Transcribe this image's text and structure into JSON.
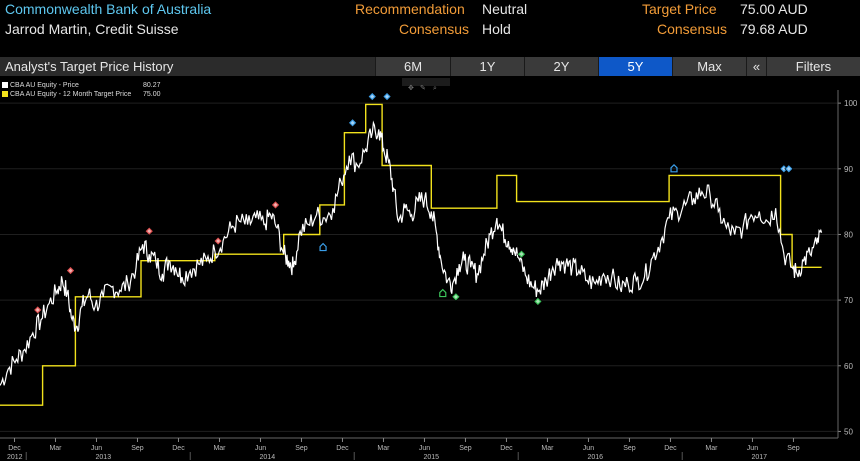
{
  "header": {
    "company": "Commonwealth Bank of Australia",
    "analyst": "Jarrod Martin, Credit Suisse",
    "recommendation_label": "Recommendation",
    "recommendation_value": "Neutral",
    "consensus_rating_label": "Consensus",
    "consensus_rating_value": "Hold",
    "target_price_label": "Target Price",
    "target_price_value": "75.00 AUD",
    "consensus_price_label": "Consensus",
    "consensus_price_value": "79.68 AUD"
  },
  "toolbar": {
    "title": "Analyst's Target Price History",
    "buttons": [
      "6M",
      "1Y",
      "2Y",
      "5Y",
      "Max",
      "«",
      "Filters"
    ],
    "active": "5Y"
  },
  "colors": {
    "price": "#ffffff",
    "target": "#f2e21c",
    "header_label": "#f29c38",
    "company": "#5ec8f0",
    "active_button": "#0e58c8"
  },
  "chart_data": {
    "type": "line",
    "legend": [
      {
        "name": "CBA AU Equity - Price",
        "value": "80.27",
        "color": "#ffffff"
      },
      {
        "name": "CBA AU Equity - 12 Month Target Price",
        "value": "75.00",
        "color": "#f2e21c"
      }
    ],
    "x_tick_months": [
      "Dec",
      "Mar",
      "Jun",
      "Sep",
      "Dec",
      "Mar",
      "Jun",
      "Sep",
      "Dec",
      "Mar",
      "Jun",
      "Sep",
      "Dec",
      "Mar",
      "Jun",
      "Sep",
      "Dec",
      "Mar",
      "Jun",
      "Sep"
    ],
    "x_tick_years": [
      "2012",
      "2013",
      "2014",
      "2015",
      "2016",
      "2017"
    ],
    "y_ticks": [
      50,
      60,
      70,
      80,
      90,
      100
    ],
    "ylim": [
      49,
      102
    ],
    "xlim": [
      2012.87,
      2017.98
    ],
    "price": [
      [
        2012.87,
        57
      ],
      [
        2012.92,
        59.5
      ],
      [
        2012.97,
        61
      ],
      [
        2013.02,
        62.5
      ],
      [
        2013.07,
        65
      ],
      [
        2013.12,
        67
      ],
      [
        2013.17,
        69.5
      ],
      [
        2013.22,
        71.5
      ],
      [
        2013.25,
        73
      ],
      [
        2013.28,
        71
      ],
      [
        2013.31,
        67
      ],
      [
        2013.34,
        66
      ],
      [
        2013.37,
        69
      ],
      [
        2013.41,
        71
      ],
      [
        2013.45,
        69
      ],
      [
        2013.5,
        70.5
      ],
      [
        2013.55,
        72
      ],
      [
        2013.6,
        71.5
      ],
      [
        2013.65,
        72.5
      ],
      [
        2013.7,
        75
      ],
      [
        2013.74,
        78.5
      ],
      [
        2013.78,
        77
      ],
      [
        2013.82,
        76
      ],
      [
        2013.86,
        74
      ],
      [
        2013.9,
        76
      ],
      [
        2013.94,
        75
      ],
      [
        2013.98,
        73.5
      ],
      [
        2014.03,
        74.5
      ],
      [
        2014.08,
        75.5
      ],
      [
        2014.13,
        76
      ],
      [
        2014.18,
        77.5
      ],
      [
        2014.23,
        79
      ],
      [
        2014.28,
        81
      ],
      [
        2014.33,
        82
      ],
      [
        2014.38,
        81.5
      ],
      [
        2014.43,
        82.5
      ],
      [
        2014.48,
        81.5
      ],
      [
        2014.52,
        83
      ],
      [
        2014.56,
        81
      ],
      [
        2014.6,
        77
      ],
      [
        2014.63,
        76
      ],
      [
        2014.66,
        75
      ],
      [
        2014.7,
        80.5
      ],
      [
        2014.75,
        81.5
      ],
      [
        2014.8,
        83
      ],
      [
        2014.85,
        82.5
      ],
      [
        2014.9,
        84
      ],
      [
        2014.95,
        88
      ],
      [
        2015.0,
        92
      ],
      [
        2015.05,
        90.5
      ],
      [
        2015.1,
        93
      ],
      [
        2015.14,
        95.5
      ],
      [
        2015.18,
        96
      ],
      [
        2015.21,
        93
      ],
      [
        2015.24,
        91
      ],
      [
        2015.27,
        87
      ],
      [
        2015.3,
        82
      ],
      [
        2015.34,
        84
      ],
      [
        2015.38,
        83
      ],
      [
        2015.42,
        85
      ],
      [
        2015.46,
        85.5
      ],
      [
        2015.5,
        83.5
      ],
      [
        2015.53,
        80.5
      ],
      [
        2015.56,
        76
      ],
      [
        2015.6,
        73
      ],
      [
        2015.63,
        72.5
      ],
      [
        2015.67,
        75.5
      ],
      [
        2015.7,
        76
      ],
      [
        2015.74,
        75
      ],
      [
        2015.78,
        74
      ],
      [
        2015.82,
        77
      ],
      [
        2015.86,
        80
      ],
      [
        2015.9,
        82.5
      ],
      [
        2015.93,
        80.5
      ],
      [
        2015.97,
        79
      ],
      [
        2016.0,
        78
      ],
      [
        2016.04,
        76
      ],
      [
        2016.08,
        73.5
      ],
      [
        2016.12,
        72
      ],
      [
        2016.16,
        71.5
      ],
      [
        2016.2,
        73
      ],
      [
        2016.24,
        75
      ],
      [
        2016.28,
        76
      ],
      [
        2016.32,
        75.5
      ],
      [
        2016.36,
        75
      ],
      [
        2016.4,
        74.5
      ],
      [
        2016.45,
        73
      ],
      [
        2016.5,
        72.5
      ],
      [
        2016.55,
        74
      ],
      [
        2016.6,
        73.5
      ],
      [
        2016.65,
        72
      ],
      [
        2016.7,
        72.5
      ],
      [
        2016.75,
        73
      ],
      [
        2016.8,
        73.5
      ],
      [
        2016.85,
        76.5
      ],
      [
        2016.9,
        79
      ],
      [
        2016.95,
        82.5
      ],
      [
        2017.0,
        83.5
      ],
      [
        2017.05,
        84.5
      ],
      [
        2017.1,
        85.5
      ],
      [
        2017.15,
        86.5
      ],
      [
        2017.2,
        86
      ],
      [
        2017.25,
        83.5
      ],
      [
        2017.3,
        81
      ],
      [
        2017.35,
        80
      ],
      [
        2017.4,
        81
      ],
      [
        2017.45,
        83
      ],
      [
        2017.5,
        83.5
      ],
      [
        2017.55,
        82
      ],
      [
        2017.6,
        84
      ],
      [
        2017.65,
        77
      ],
      [
        2017.7,
        75
      ],
      [
        2017.73,
        74
      ],
      [
        2017.77,
        76
      ],
      [
        2017.81,
        77
      ],
      [
        2017.85,
        78.5
      ],
      [
        2017.88,
        80.27
      ]
    ],
    "target_price": [
      [
        2012.87,
        54
      ],
      [
        2013.13,
        54
      ],
      [
        2013.13,
        60
      ],
      [
        2013.33,
        60
      ],
      [
        2013.33,
        70.5
      ],
      [
        2013.73,
        70.5
      ],
      [
        2013.73,
        76
      ],
      [
        2014.18,
        76
      ],
      [
        2014.18,
        77
      ],
      [
        2014.6,
        77
      ],
      [
        2014.6,
        80
      ],
      [
        2014.82,
        80
      ],
      [
        2014.82,
        84.5
      ],
      [
        2014.97,
        84.5
      ],
      [
        2014.97,
        95.5
      ],
      [
        2015.1,
        95.5
      ],
      [
        2015.1,
        99.8
      ],
      [
        2015.2,
        99.8
      ],
      [
        2015.2,
        90.5
      ],
      [
        2015.5,
        90.5
      ],
      [
        2015.5,
        84
      ],
      [
        2015.9,
        84
      ],
      [
        2015.9,
        89
      ],
      [
        2016.02,
        89
      ],
      [
        2016.02,
        85
      ],
      [
        2016.95,
        85
      ],
      [
        2016.95,
        89
      ],
      [
        2017.63,
        89
      ],
      [
        2017.63,
        80
      ],
      [
        2017.7,
        80
      ],
      [
        2017.7,
        75
      ],
      [
        2017.88,
        75
      ]
    ],
    "recommendation_markers": [
      {
        "x": 2013.1,
        "y": 68.5,
        "type": "up",
        "color": "#e05050"
      },
      {
        "x": 2013.3,
        "y": 74.5,
        "type": "up",
        "color": "#e05050"
      },
      {
        "x": 2013.78,
        "y": 80.5,
        "type": "up",
        "color": "#e05050"
      },
      {
        "x": 2014.2,
        "y": 79,
        "type": "up",
        "color": "#e05050"
      },
      {
        "x": 2014.55,
        "y": 84.5,
        "type": "up",
        "color": "#e05050"
      },
      {
        "x": 2014.84,
        "y": 78,
        "type": "house",
        "color": "#3a9ee8"
      },
      {
        "x": 2015.02,
        "y": 97,
        "type": "diamond",
        "color": "#3a9ee8"
      },
      {
        "x": 2015.14,
        "y": 101,
        "type": "diamond",
        "color": "#3a9ee8"
      },
      {
        "x": 2015.23,
        "y": 101,
        "type": "diamond",
        "color": "#3a9ee8"
      },
      {
        "x": 2015.57,
        "y": 71,
        "type": "house",
        "color": "#3cc35a"
      },
      {
        "x": 2015.65,
        "y": 70.5,
        "type": "diamond",
        "color": "#3cc35a"
      },
      {
        "x": 2016.05,
        "y": 77,
        "type": "diamond",
        "color": "#3cc35a"
      },
      {
        "x": 2016.15,
        "y": 69.8,
        "type": "diamond",
        "color": "#3cc35a"
      },
      {
        "x": 2016.98,
        "y": 90,
        "type": "house",
        "color": "#3a9ee8"
      },
      {
        "x": 2017.65,
        "y": 90,
        "type": "diamond",
        "color": "#3a9ee8"
      },
      {
        "x": 2017.68,
        "y": 90,
        "type": "diamond",
        "color": "#3a9ee8"
      }
    ]
  }
}
